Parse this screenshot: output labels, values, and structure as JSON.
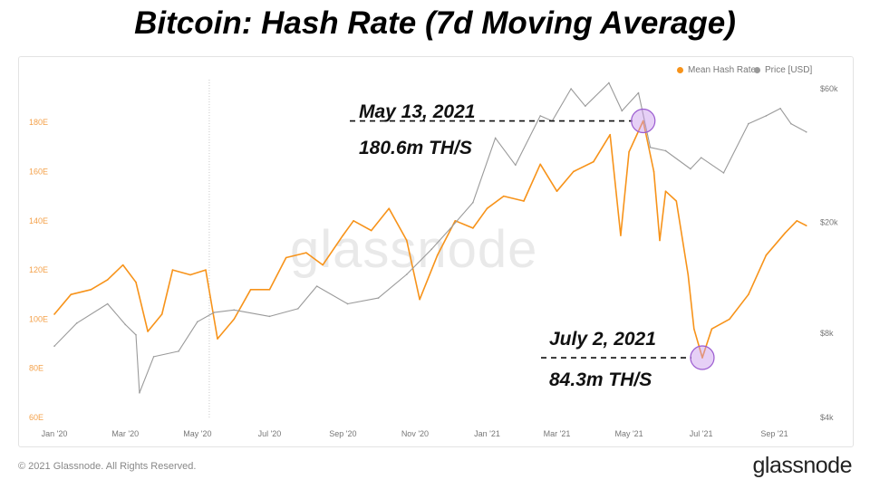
{
  "title": "Bitcoin: Hash Rate (7d Moving Average)",
  "watermark": "glassnode",
  "footer": {
    "copyright": "© 2021 Glassnode. All Rights Reserved.",
    "logo": "glassnode"
  },
  "legend": [
    {
      "label": "Mean Hash Rate",
      "color": "#f7931a"
    },
    {
      "label": "Price [USD]",
      "color": "#9a9a9a"
    }
  ],
  "annotations": [
    {
      "date": "May 13, 2021",
      "value": "180.6m TH/S",
      "x": "2021-05-13",
      "y": 180.6
    },
    {
      "date": "July 2, 2021",
      "value": "84.3m TH/S",
      "x": "2021-07-02",
      "y": 84.3
    }
  ],
  "chart_data": {
    "type": "line",
    "x_ticks": [
      "Jan '20",
      "Mar '20",
      "May '20",
      "Jul '20",
      "Sep '20",
      "Nov '20",
      "Jan '21",
      "Mar '21",
      "May '21",
      "Jul '21",
      "Sep '21"
    ],
    "x_tick_dates": [
      "2020-01-01",
      "2020-03-01",
      "2020-05-01",
      "2020-07-01",
      "2020-09-01",
      "2020-11-01",
      "2021-01-01",
      "2021-03-01",
      "2021-05-01",
      "2021-07-01",
      "2021-09-01"
    ],
    "y_left_ticks": [
      "60E",
      "80E",
      "100E",
      "120E",
      "140E",
      "160E",
      "180E"
    ],
    "y_left_range": [
      60,
      190
    ],
    "y_right_ticks": [
      "$4k",
      "$8k",
      "$20k",
      "$60k"
    ],
    "y_right_values": [
      4000,
      8000,
      20000,
      60000
    ],
    "y_right_scale": "log",
    "y_right_range": [
      4000,
      60000
    ],
    "series": [
      {
        "name": "Mean Hash Rate",
        "axis": "left",
        "color": "#f7931a",
        "points": [
          [
            "2020-01-01",
            102
          ],
          [
            "2020-01-15",
            110
          ],
          [
            "2020-02-01",
            112
          ],
          [
            "2020-02-15",
            116
          ],
          [
            "2020-02-28",
            122
          ],
          [
            "2020-03-10",
            115
          ],
          [
            "2020-03-20",
            95
          ],
          [
            "2020-04-01",
            102
          ],
          [
            "2020-04-10",
            120
          ],
          [
            "2020-04-25",
            118
          ],
          [
            "2020-05-08",
            120
          ],
          [
            "2020-05-18",
            92
          ],
          [
            "2020-06-01",
            100
          ],
          [
            "2020-06-15",
            112
          ],
          [
            "2020-07-01",
            112
          ],
          [
            "2020-07-15",
            125
          ],
          [
            "2020-08-01",
            127
          ],
          [
            "2020-08-15",
            122
          ],
          [
            "2020-09-01",
            134
          ],
          [
            "2020-09-10",
            140
          ],
          [
            "2020-09-25",
            136
          ],
          [
            "2020-10-10",
            145
          ],
          [
            "2020-10-25",
            132
          ],
          [
            "2020-11-05",
            108
          ],
          [
            "2020-11-20",
            126
          ],
          [
            "2020-12-05",
            140
          ],
          [
            "2020-12-20",
            137
          ],
          [
            "2021-01-01",
            145
          ],
          [
            "2021-01-15",
            150
          ],
          [
            "2021-02-01",
            148
          ],
          [
            "2021-02-15",
            163
          ],
          [
            "2021-03-01",
            152
          ],
          [
            "2021-03-15",
            160
          ],
          [
            "2021-04-01",
            164
          ],
          [
            "2021-04-15",
            175
          ],
          [
            "2021-04-24",
            134
          ],
          [
            "2021-05-01",
            168
          ],
          [
            "2021-05-13",
            180.6
          ],
          [
            "2021-05-22",
            160
          ],
          [
            "2021-05-27",
            132
          ],
          [
            "2021-06-01",
            152
          ],
          [
            "2021-06-10",
            148
          ],
          [
            "2021-06-20",
            118
          ],
          [
            "2021-06-25",
            96
          ],
          [
            "2021-07-02",
            84.3
          ],
          [
            "2021-07-10",
            96
          ],
          [
            "2021-07-25",
            100
          ],
          [
            "2021-08-10",
            110
          ],
          [
            "2021-08-25",
            126
          ],
          [
            "2021-09-10",
            135
          ],
          [
            "2021-09-20",
            140
          ],
          [
            "2021-09-28",
            138
          ]
        ]
      },
      {
        "name": "Price [USD]",
        "axis": "right",
        "color": "#9a9a9a",
        "points": [
          [
            "2020-01-01",
            7200
          ],
          [
            "2020-01-20",
            8700
          ],
          [
            "2020-02-15",
            10200
          ],
          [
            "2020-03-01",
            8600
          ],
          [
            "2020-03-10",
            7900
          ],
          [
            "2020-03-13",
            4900
          ],
          [
            "2020-03-25",
            6600
          ],
          [
            "2020-04-15",
            6900
          ],
          [
            "2020-05-01",
            8800
          ],
          [
            "2020-05-15",
            9500
          ],
          [
            "2020-06-01",
            9700
          ],
          [
            "2020-07-01",
            9200
          ],
          [
            "2020-07-25",
            9800
          ],
          [
            "2020-08-10",
            11800
          ],
          [
            "2020-09-05",
            10200
          ],
          [
            "2020-10-01",
            10700
          ],
          [
            "2020-10-25",
            13000
          ],
          [
            "2020-11-15",
            16000
          ],
          [
            "2020-12-01",
            19000
          ],
          [
            "2020-12-20",
            23500
          ],
          [
            "2021-01-08",
            40000
          ],
          [
            "2021-01-25",
            32000
          ],
          [
            "2021-02-15",
            48000
          ],
          [
            "2021-02-25",
            46000
          ],
          [
            "2021-03-13",
            60000
          ],
          [
            "2021-03-25",
            52000
          ],
          [
            "2021-04-14",
            63000
          ],
          [
            "2021-04-25",
            50000
          ],
          [
            "2021-05-09",
            58000
          ],
          [
            "2021-05-19",
            37000
          ],
          [
            "2021-06-01",
            36000
          ],
          [
            "2021-06-22",
            31000
          ],
          [
            "2021-07-01",
            34000
          ],
          [
            "2021-07-20",
            30000
          ],
          [
            "2021-08-10",
            45000
          ],
          [
            "2021-08-25",
            48000
          ],
          [
            "2021-09-06",
            51000
          ],
          [
            "2021-09-15",
            45000
          ],
          [
            "2021-09-28",
            42000
          ]
        ]
      }
    ]
  }
}
